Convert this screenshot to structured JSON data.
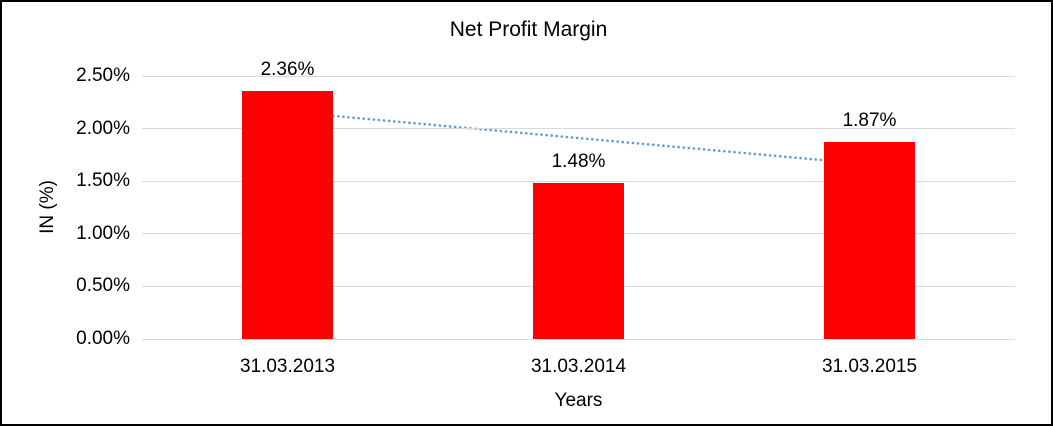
{
  "frame": {
    "background_color": "#ffffff",
    "border_color": "#000000"
  },
  "chart_data": {
    "type": "bar",
    "title": "Net Profit Margin",
    "xlabel": "Years",
    "ylabel": "IN (%)",
    "categories": [
      "31.03.2013",
      "31.03.2014",
      "31.03.2015"
    ],
    "values": [
      2.36,
      1.48,
      1.87
    ],
    "data_labels": [
      "2.36%",
      "1.48%",
      "1.87%"
    ],
    "ylim": [
      0,
      2.5
    ],
    "yticks": [
      {
        "value": 0.0,
        "label": "0.00%"
      },
      {
        "value": 0.5,
        "label": "0.50%"
      },
      {
        "value": 1.0,
        "label": "1.00%"
      },
      {
        "value": 1.5,
        "label": "1.50%"
      },
      {
        "value": 2.0,
        "label": "2.00%"
      },
      {
        "value": 2.5,
        "label": "2.50%"
      }
    ],
    "grid": "horizontal",
    "legend": "none",
    "bar_color": "#ff0000",
    "gridline_color": "#d9d9d9",
    "trendline": {
      "type": "linear",
      "style": "dotted",
      "color": "#5b9bd5",
      "start_value": 2.16,
      "end_value": 1.66
    }
  }
}
